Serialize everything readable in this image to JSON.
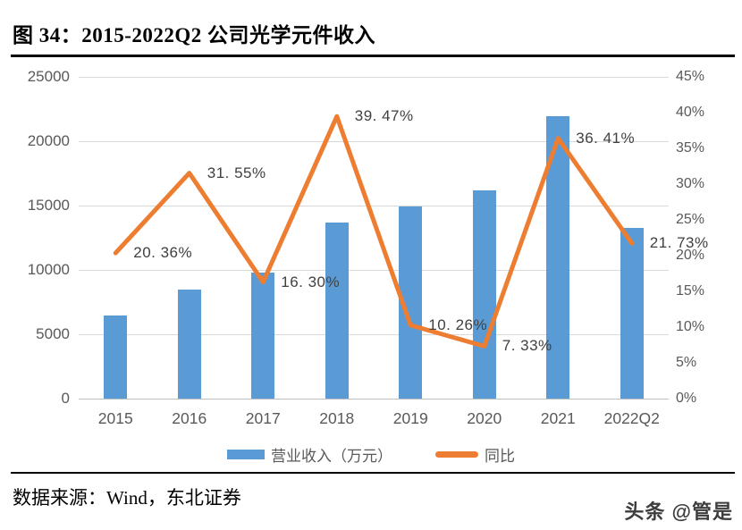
{
  "figure": {
    "title": "图 34：2015-2022Q2 公司光学元件收入",
    "source_note": "数据来源：Wind，东北证券",
    "watermark": "头条 @管是"
  },
  "colors": {
    "bar_blue": "#5B9BD5",
    "line_orange": "#ED7D31",
    "gridline_gray": "#D9D9D9",
    "axis_line_gray": "#BFBFBF",
    "axis_text_gray": "#595959",
    "data_label_gray": "#404040"
  },
  "chart_data": {
    "type": "bar",
    "subtype": "combo-bar-line",
    "title": "2015-2022Q2 公司光学元件收入",
    "categories": [
      "2015",
      "2016",
      "2017",
      "2018",
      "2019",
      "2020",
      "2021",
      "2022Q2"
    ],
    "series": [
      {
        "name": "营业收入（万元）",
        "type": "bar",
        "axis": "left",
        "values": [
          6450,
          8450,
          9800,
          13650,
          14900,
          16150,
          21950,
          13250
        ]
      },
      {
        "name": "同比",
        "type": "line",
        "axis": "right",
        "values": [
          20.36,
          31.55,
          16.3,
          39.47,
          10.26,
          7.33,
          36.41,
          21.73
        ],
        "point_labels": [
          "20. 36%",
          "31. 55%",
          "16. 30%",
          "39. 47%",
          "10. 26%",
          "7. 33%",
          "36. 41%",
          "21. 73%"
        ]
      }
    ],
    "left_axis": {
      "min": 0,
      "max": 25000,
      "step": 5000,
      "tick_labels": [
        "0",
        "5000",
        "10000",
        "15000",
        "20000",
        "25000"
      ]
    },
    "right_axis": {
      "min": 0,
      "max": 45,
      "step": 5,
      "tick_labels": [
        "0%",
        "5%",
        "10%",
        "15%",
        "20%",
        "25%",
        "30%",
        "35%",
        "40%",
        "45%"
      ]
    },
    "grid": true,
    "legend_position": "bottom"
  }
}
